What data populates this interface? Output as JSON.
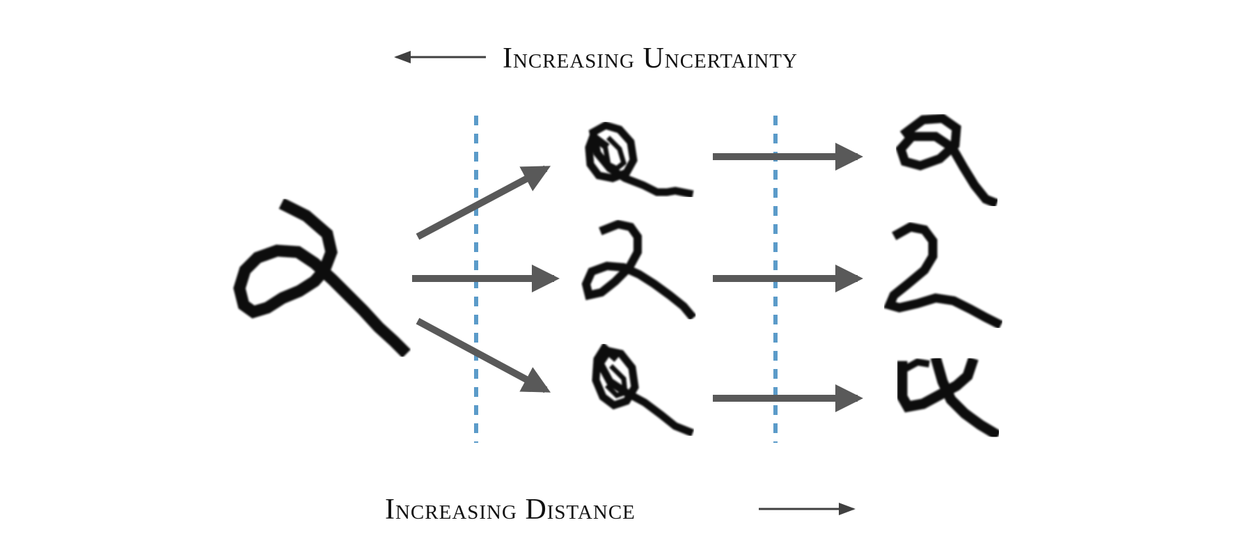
{
  "labels": {
    "top": "Increasing Uncertainty",
    "bottom": "Increasing Distance"
  },
  "colors": {
    "arrow": "#595959",
    "label_arrow": "#404040",
    "divider": "#5b9bc9",
    "digit": "#111111"
  }
}
